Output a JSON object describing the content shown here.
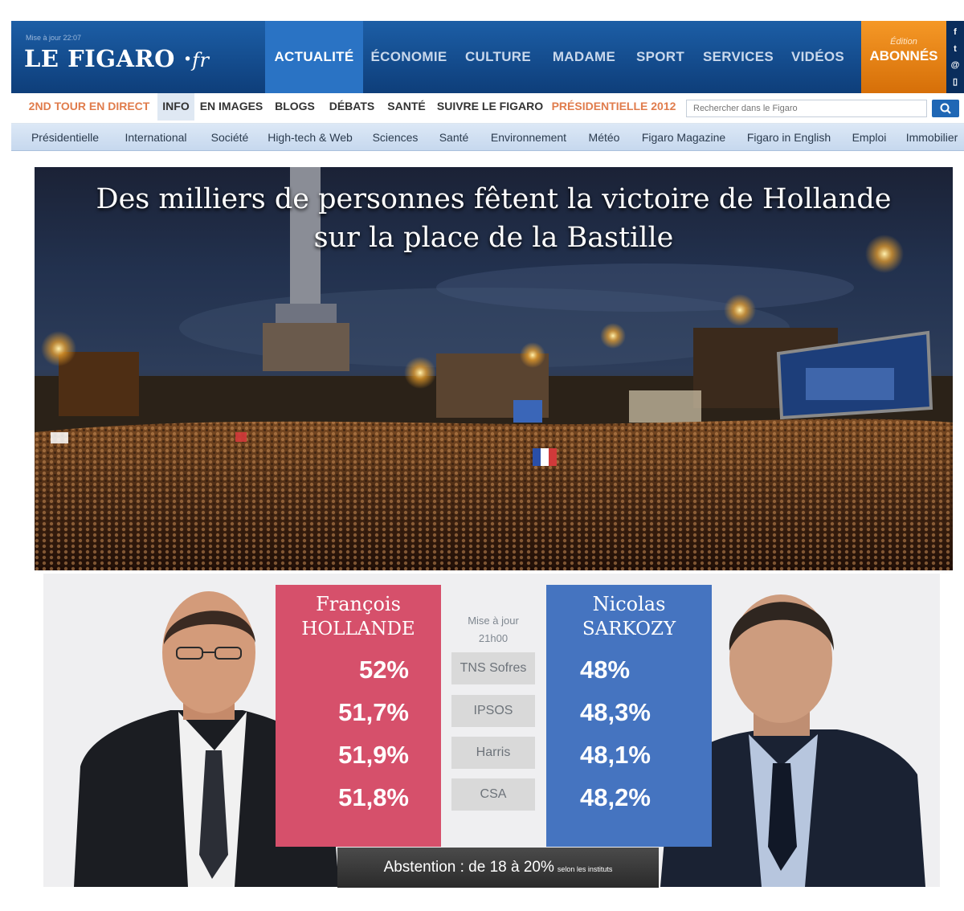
{
  "header": {
    "update_text": "Mise à jour 22:07",
    "logo_main": "LE FIGARO",
    "logo_dot": "·",
    "logo_fr": "fr",
    "nav": [
      {
        "label": "ACTUALITÉ",
        "active": true
      },
      {
        "label": "ÉCONOMIE"
      },
      {
        "label": "CULTURE"
      },
      {
        "label": "MADAME"
      },
      {
        "label": "SPORT"
      },
      {
        "label": "SERVICES"
      },
      {
        "label": "VIDÉOS"
      }
    ],
    "abonnes_small": "Édition",
    "abonnes_big": "ABONNÉS",
    "social": [
      "f",
      "t",
      "@",
      "▯"
    ]
  },
  "subnav": {
    "items": [
      {
        "label": "2ND TOUR EN DIRECT",
        "style": "red"
      },
      {
        "label": "INFO",
        "style": "active"
      },
      {
        "label": "EN IMAGES"
      },
      {
        "label": "BLOGS"
      },
      {
        "label": "DÉBATS"
      },
      {
        "label": "SANTÉ"
      },
      {
        "label": "SUIVRE LE FIGARO"
      },
      {
        "label": "PRÉSIDENTIELLE 2012",
        "style": "red"
      }
    ],
    "search_placeholder": "Rechercher dans le Figaro"
  },
  "rubriques": [
    "Présidentielle",
    "International",
    "Société",
    "High-tech & Web",
    "Sciences",
    "Santé",
    "Environnement",
    "Météo",
    "Figaro Magazine",
    "Figaro in English",
    "Emploi",
    "Immobilier"
  ],
  "hero": {
    "title_line1": "Des milliers de personnes fêtent la victoire de Hollande",
    "title_line2": "sur la place de la Bastille"
  },
  "results": {
    "hollande": {
      "first": "François",
      "last": "HOLLANDE",
      "scores": [
        "52%",
        "51,7%",
        "51,9%",
        "51,8%"
      ]
    },
    "sarkozy": {
      "first": "Nicolas",
      "last": "SARKOZY",
      "scores": [
        "48%",
        "48,3%",
        "48,1%",
        "48,2%"
      ]
    },
    "update_line1": "Mise à jour",
    "update_line2": "21h00",
    "institutes": [
      "TNS Sofres",
      "IPSOS",
      "Harris",
      "CSA"
    ],
    "abstention": "Abstention : de 18 à 20%",
    "abstention_note": "selon les instituts"
  },
  "colors": {
    "hollande": "#d6506b",
    "sarkozy": "#4574c0",
    "brand_blue": "#1c5ea6",
    "abonnes_orange": "#e9820f"
  }
}
